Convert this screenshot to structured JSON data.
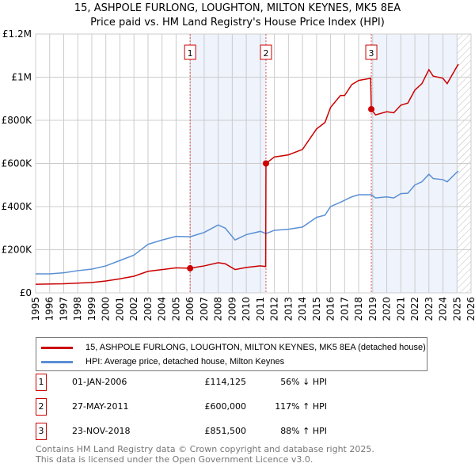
{
  "title": "15, ASHPOLE FURLONG, LOUGHTON, MILTON KEYNES, MK5 8EA",
  "subtitle": "Price paid vs. HM Land Registry's House Price Index (HPI)",
  "chart_data": {
    "type": "line",
    "xlim": [
      1995,
      2026
    ],
    "ylim": [
      0,
      1200000
    ],
    "x_ticks": [
      "1995",
      "1996",
      "1997",
      "1998",
      "1999",
      "2000",
      "2001",
      "2002",
      "2003",
      "2004",
      "2005",
      "2006",
      "2007",
      "2008",
      "2009",
      "2010",
      "2011",
      "2012",
      "2013",
      "2014",
      "2015",
      "2016",
      "2017",
      "2018",
      "2019",
      "2020",
      "2021",
      "2022",
      "2023",
      "2024",
      "2025",
      "2026"
    ],
    "y_ticks": [
      {
        "v": 0,
        "label": "£0"
      },
      {
        "v": 200000,
        "label": "£200K"
      },
      {
        "v": 400000,
        "label": "£400K"
      },
      {
        "v": 600000,
        "label": "£600K"
      },
      {
        "v": 800000,
        "label": "£800K"
      },
      {
        "v": 1000000,
        "label": "£1M"
      },
      {
        "v": 1200000,
        "label": "£1.2M"
      }
    ],
    "series": [
      {
        "name": "15, ASHPOLE FURLONG, LOUGHTON, MILTON KEYNES, MK5 8EA (detached house)",
        "color": "#cc0000",
        "points": [
          [
            1995,
            40000
          ],
          [
            1997,
            42000
          ],
          [
            1999,
            48000
          ],
          [
            2000,
            55000
          ],
          [
            2001,
            65000
          ],
          [
            2002,
            77000
          ],
          [
            2003,
            100000
          ],
          [
            2004,
            108000
          ],
          [
            2005,
            116000
          ],
          [
            2006,
            114125
          ],
          [
            2007,
            125000
          ],
          [
            2008,
            140000
          ],
          [
            2008.5,
            135000
          ],
          [
            2009.2,
            108000
          ],
          [
            2010,
            118000
          ],
          [
            2011,
            125000
          ],
          [
            2011.38,
            122000
          ],
          [
            2011.4,
            600000
          ],
          [
            2012,
            630000
          ],
          [
            2013,
            640000
          ],
          [
            2014,
            665000
          ],
          [
            2015,
            760000
          ],
          [
            2015.6,
            790000
          ],
          [
            2016,
            860000
          ],
          [
            2016.7,
            915000
          ],
          [
            2017,
            915000
          ],
          [
            2017.5,
            965000
          ],
          [
            2018,
            985000
          ],
          [
            2018.85,
            995000
          ],
          [
            2018.9,
            851500
          ],
          [
            2019.2,
            825000
          ],
          [
            2020,
            840000
          ],
          [
            2020.5,
            835000
          ],
          [
            2021,
            870000
          ],
          [
            2021.5,
            880000
          ],
          [
            2022,
            940000
          ],
          [
            2022.5,
            970000
          ],
          [
            2023,
            1035000
          ],
          [
            2023.3,
            1005000
          ],
          [
            2024,
            995000
          ],
          [
            2024.3,
            970000
          ],
          [
            2025,
            1050000
          ],
          [
            2025.1,
            1060000
          ]
        ]
      },
      {
        "name": "HPI: Average price, detached house, Milton Keynes",
        "color": "#5b8fd4",
        "points": [
          [
            1995,
            88000
          ],
          [
            1996,
            88000
          ],
          [
            1997,
            93000
          ],
          [
            1998,
            103000
          ],
          [
            1999,
            110000
          ],
          [
            2000,
            125000
          ],
          [
            2001,
            150000
          ],
          [
            2002,
            175000
          ],
          [
            2003,
            225000
          ],
          [
            2004,
            245000
          ],
          [
            2005,
            262000
          ],
          [
            2006,
            260000
          ],
          [
            2007,
            280000
          ],
          [
            2008,
            315000
          ],
          [
            2008.5,
            300000
          ],
          [
            2009.2,
            245000
          ],
          [
            2010,
            270000
          ],
          [
            2011,
            285000
          ],
          [
            2011.4,
            275000
          ],
          [
            2012,
            290000
          ],
          [
            2013,
            295000
          ],
          [
            2014,
            305000
          ],
          [
            2015,
            350000
          ],
          [
            2015.6,
            360000
          ],
          [
            2016,
            400000
          ],
          [
            2016.7,
            420000
          ],
          [
            2017.5,
            445000
          ],
          [
            2018,
            455000
          ],
          [
            2018.9,
            455000
          ],
          [
            2019.2,
            440000
          ],
          [
            2020,
            445000
          ],
          [
            2020.5,
            440000
          ],
          [
            2021,
            460000
          ],
          [
            2021.5,
            462000
          ],
          [
            2022,
            500000
          ],
          [
            2022.5,
            515000
          ],
          [
            2023,
            550000
          ],
          [
            2023.3,
            530000
          ],
          [
            2024,
            525000
          ],
          [
            2024.3,
            515000
          ],
          [
            2025,
            560000
          ],
          [
            2025.1,
            565000
          ]
        ]
      }
    ],
    "sales": [
      {
        "n": "1",
        "x": 2006.0,
        "y": 114125
      },
      {
        "n": "2",
        "x": 2011.4,
        "y": 600000
      },
      {
        "n": "3",
        "x": 2018.9,
        "y": 851500
      }
    ],
    "shaded_ranges": [
      [
        2006.0,
        2011.4
      ],
      [
        2018.9,
        2025.05
      ]
    ],
    "forecast_hatch_from": 2025.05
  },
  "legend": {
    "red": "15, ASHPOLE FURLONG, LOUGHTON, MILTON KEYNES, MK5 8EA (detached house)",
    "blue": "HPI: Average price, detached house, Milton Keynes"
  },
  "table": [
    {
      "n": "1",
      "date": "01-JAN-2006",
      "price": "£114,125",
      "hpi": "56% ↓ HPI"
    },
    {
      "n": "2",
      "date": "27-MAY-2011",
      "price": "£600,000",
      "hpi": "117% ↑ HPI"
    },
    {
      "n": "3",
      "date": "23-NOV-2018",
      "price": "£851,500",
      "hpi": "88% ↑ HPI"
    }
  ],
  "footer": [
    "Contains HM Land Registry data © Crown copyright and database right 2025.",
    "This data is licensed under the Open Government Licence v3.0."
  ]
}
